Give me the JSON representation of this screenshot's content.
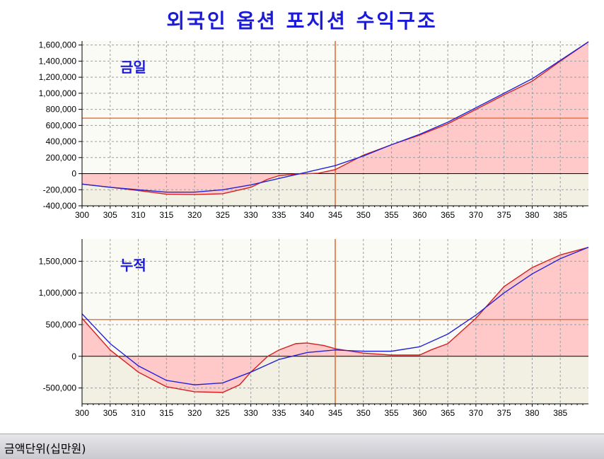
{
  "title": "외국인 옵션 포지션 수익구조",
  "status_bar": {
    "unit_text": "금액단위(십만원)"
  },
  "colors": {
    "line_a": "#d41f1f",
    "line_b": "#2323d8",
    "fill": "#ffc9c9",
    "reference": "#e0703a",
    "title": "#1a1ad8"
  },
  "chart_data": [
    {
      "type": "line",
      "label": "금일",
      "xlim": [
        300,
        390
      ],
      "ylim": [
        -400000,
        1650000
      ],
      "x_ticks": [
        "300",
        "305",
        "310",
        "315",
        "320",
        "325",
        "330",
        "335",
        "340",
        "345",
        "350",
        "355",
        "360",
        "365",
        "370",
        "375",
        "380",
        "385"
      ],
      "y_ticks": [
        "1,600,000",
        "1,400,000",
        "1,200,000",
        "1,000,000",
        "800,000",
        "600,000",
        "400,000",
        "200,000",
        "0",
        "-200,000",
        "-400,000"
      ],
      "reference_x": 345,
      "reference_y": 690000,
      "grid": true,
      "series": [
        {
          "color": "red",
          "x": [
            300,
            305,
            310,
            315,
            320,
            325,
            330,
            333,
            335,
            338,
            340,
            342,
            345,
            350,
            355,
            360,
            365,
            370,
            375,
            380,
            385,
            390
          ],
          "y": [
            -130000,
            -170000,
            -210000,
            -255000,
            -260000,
            -250000,
            -170000,
            -70000,
            -25000,
            -5000,
            0,
            5000,
            50000,
            230000,
            360000,
            480000,
            620000,
            800000,
            980000,
            1150000,
            1400000,
            1640000
          ]
        },
        {
          "color": "blue",
          "x": [
            300,
            305,
            310,
            315,
            320,
            325,
            330,
            335,
            340,
            345,
            350,
            355,
            360,
            365,
            370,
            375,
            380,
            385,
            390
          ],
          "y": [
            -130000,
            -170000,
            -200000,
            -230000,
            -230000,
            -200000,
            -140000,
            -60000,
            20000,
            100000,
            220000,
            360000,
            490000,
            640000,
            820000,
            1000000,
            1180000,
            1410000,
            1640000
          ]
        }
      ]
    },
    {
      "type": "line",
      "label": "누적",
      "xlim": [
        300,
        390
      ],
      "ylim": [
        -750000,
        1850000
      ],
      "x_ticks": [
        "300",
        "305",
        "310",
        "315",
        "320",
        "325",
        "330",
        "335",
        "340",
        "345",
        "350",
        "355",
        "360",
        "365",
        "370",
        "375",
        "380",
        "385"
      ],
      "y_ticks": [
        "1,500,000",
        "1,000,000",
        "500,000",
        "0",
        "-500,000"
      ],
      "reference_x": 345,
      "reference_y": 580000,
      "grid": true,
      "series": [
        {
          "color": "red",
          "x": [
            300,
            305,
            310,
            315,
            320,
            325,
            328,
            330,
            333,
            335,
            338,
            340,
            343,
            345,
            350,
            355,
            360,
            362,
            365,
            370,
            375,
            380,
            385,
            390
          ],
          "y": [
            600000,
            100000,
            -250000,
            -480000,
            -560000,
            -570000,
            -450000,
            -250000,
            0,
            100000,
            200000,
            210000,
            170000,
            120000,
            50000,
            20000,
            20000,
            100000,
            200000,
            600000,
            1100000,
            1400000,
            1600000,
            1720000
          ]
        },
        {
          "color": "blue",
          "x": [
            300,
            305,
            310,
            315,
            320,
            325,
            330,
            335,
            340,
            345,
            350,
            355,
            360,
            365,
            370,
            375,
            380,
            385,
            390
          ],
          "y": [
            670000,
            200000,
            -150000,
            -380000,
            -450000,
            -420000,
            -250000,
            -50000,
            60000,
            100000,
            80000,
            80000,
            150000,
            350000,
            650000,
            1000000,
            1300000,
            1540000,
            1720000
          ]
        }
      ]
    }
  ]
}
